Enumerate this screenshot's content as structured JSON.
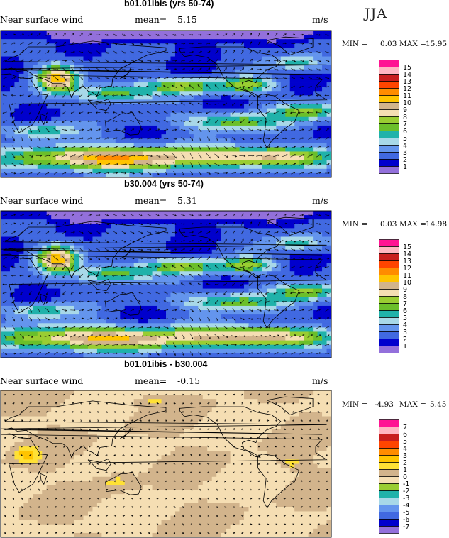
{
  "season": "JJA",
  "chart_data": [
    {
      "type": "heatmap",
      "title": "b01.01ibis (yrs 50-74)",
      "variable": "Near surface wind",
      "mean_label": "mean=",
      "mean": "5.15",
      "units": "m/s",
      "min_label": "MIN =",
      "min": "0.03",
      "max_label": "MAX =",
      "max": "15.95",
      "colorbar": {
        "levels": [
          "15",
          "14",
          "13",
          "12",
          "11",
          "10",
          "9",
          "8",
          "7",
          "6",
          "5",
          "4",
          "3",
          "2",
          "1"
        ],
        "colors": [
          "#ff1493",
          "#ffb6c1",
          "#c81e1e",
          "#ff4500",
          "#ff8c00",
          "#ffc400",
          "#d2b48c",
          "#f5deb3",
          "#9acd32",
          "#6bbf2a",
          "#20b2aa",
          "#a8d8e8",
          "#6495ed",
          "#4169e1",
          "#0000cd",
          "#9370db"
        ]
      }
    },
    {
      "type": "heatmap",
      "title": "b30.004 (yrs 50-74)",
      "variable": "Near surface wind",
      "mean_label": "mean=",
      "mean": "5.31",
      "units": "m/s",
      "min_label": "MIN =",
      "min": "0.03",
      "max_label": "MAX =",
      "max": "14.98",
      "colorbar": {
        "levels": [
          "15",
          "14",
          "13",
          "12",
          "11",
          "10",
          "9",
          "8",
          "7",
          "6",
          "5",
          "4",
          "3",
          "2",
          "1"
        ],
        "colors": [
          "#ff1493",
          "#ffb6c1",
          "#c81e1e",
          "#ff4500",
          "#ff8c00",
          "#ffc400",
          "#d2b48c",
          "#f5deb3",
          "#9acd32",
          "#6bbf2a",
          "#20b2aa",
          "#a8d8e8",
          "#6495ed",
          "#4169e1",
          "#0000cd",
          "#9370db"
        ]
      }
    },
    {
      "type": "heatmap",
      "title": "b01.01ibis - b30.004",
      "variable": "Near surface wind",
      "mean_label": "mean=",
      "mean": "-0.15",
      "units": "m/s",
      "min_label": "MIN =",
      "min": "-4.93",
      "max_label": "MAX =",
      "max": "5.45",
      "colorbar": {
        "levels": [
          "7",
          "6",
          "5",
          "4",
          "3",
          "2",
          "1",
          "0",
          "-1",
          "-2",
          "-3",
          "-4",
          "-5",
          "-6",
          "-7"
        ],
        "colors": [
          "#ff1493",
          "#ffb6c1",
          "#c81e1e",
          "#ff4500",
          "#ff8c00",
          "#ffc400",
          "#ffe135",
          "#d2b48c",
          "#f5deb3",
          "#9acd32",
          "#20b2aa",
          "#a8d8e8",
          "#6495ed",
          "#4169e1",
          "#0000cd",
          "#9370db"
        ]
      }
    }
  ]
}
